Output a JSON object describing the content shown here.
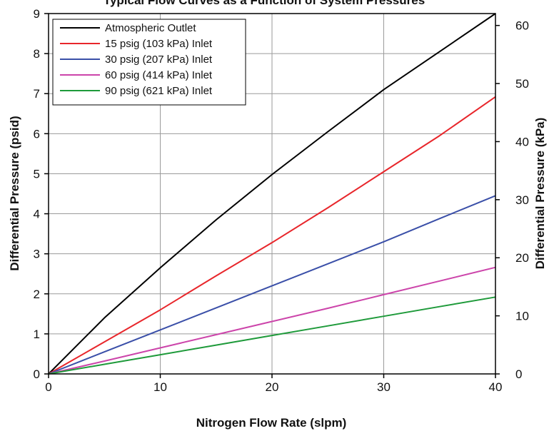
{
  "chart_data": {
    "type": "line",
    "title": "Typical Flow Curves as a Function of System Pressures",
    "xlabel": "Nitrogen Flow Rate (slpm)",
    "ylabel": "Differential Pressure (psid)",
    "y2label": "Differential Pressure (kPa)",
    "xlim": [
      0,
      40
    ],
    "ylim": [
      0,
      9
    ],
    "y2lim": [
      0,
      62.05
    ],
    "x_ticks": [
      "0",
      "10",
      "20",
      "30",
      "40"
    ],
    "y_ticks": [
      "0",
      "1",
      "2",
      "3",
      "4",
      "5",
      "6",
      "7",
      "8",
      "9"
    ],
    "y2_ticks": [
      "0",
      "10",
      "20",
      "30",
      "40",
      "50",
      "60"
    ],
    "grid": true,
    "legend_position": "top-left",
    "series": [
      {
        "name": "Atmospheric Outlet",
        "color": "#000000",
        "x": [
          0,
          5,
          10,
          15,
          20,
          25,
          30,
          35,
          40
        ],
        "y": [
          0,
          1.4,
          2.65,
          3.85,
          4.98,
          6.05,
          7.1,
          8.05,
          9.0
        ]
      },
      {
        "name": "15 psig (103 kPa) Inlet",
        "color": "#e8262b",
        "x": [
          0,
          5,
          10,
          15,
          20,
          25,
          30,
          35,
          40
        ],
        "y": [
          0,
          0.8,
          1.6,
          2.45,
          3.28,
          4.15,
          5.05,
          5.95,
          6.92
        ]
      },
      {
        "name": "30 psig (207 kPa) Inlet",
        "color": "#3a4fa8",
        "x": [
          0,
          5,
          10,
          15,
          20,
          25,
          30,
          35,
          40
        ],
        "y": [
          0,
          0.55,
          1.1,
          1.65,
          2.2,
          2.75,
          3.3,
          3.88,
          4.45
        ]
      },
      {
        "name": "60 psig (414 kPa) Inlet",
        "color": "#cc44aa",
        "x": [
          0,
          5,
          10,
          15,
          20,
          25,
          30,
          35,
          40
        ],
        "y": [
          0,
          0.32,
          0.65,
          0.98,
          1.31,
          1.64,
          1.98,
          2.32,
          2.66
        ]
      },
      {
        "name": "90 psig (621 kPa) Inlet",
        "color": "#1e9a3a",
        "x": [
          0,
          5,
          10,
          15,
          20,
          25,
          30,
          35,
          40
        ],
        "y": [
          0,
          0.24,
          0.48,
          0.72,
          0.96,
          1.2,
          1.44,
          1.68,
          1.92
        ]
      }
    ]
  }
}
